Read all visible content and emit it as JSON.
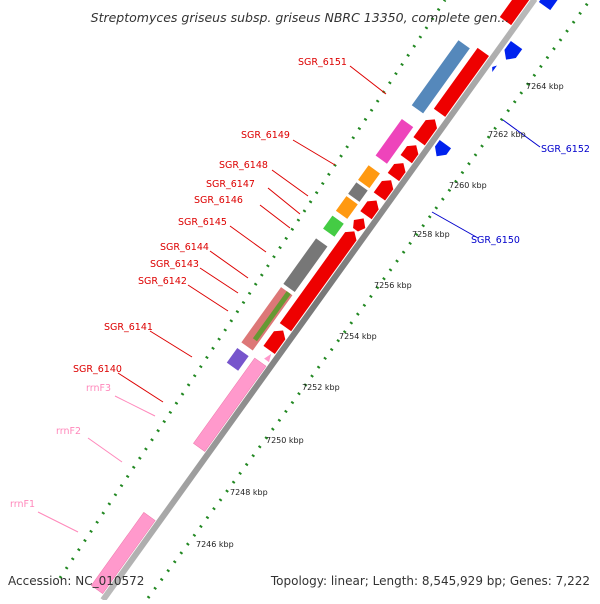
{
  "header": {
    "title": "Streptomyces griseus subsp. griseus NBRC 13350, complete gen..."
  },
  "footer": {
    "accession": "Accession: NC_010572",
    "topology": "Topology: linear; Length: 8,545,929 bp; Genes: 7,222"
  },
  "colors": {
    "cds": "#ff0000",
    "cds_minus": "#0000ff",
    "rrna": "#ff99cc",
    "backbone": "#999999",
    "dots": "#228822"
  },
  "scale_labels": [
    "7246 kbp",
    "7248 kbp",
    "7250 kbp",
    "7252 kbp",
    "7254 kbp",
    "7256 kbp",
    "7258 kbp",
    "7260 kbp",
    "7262 kbp",
    "7264 kbp"
  ],
  "feature_labels": [
    {
      "id": "lbl-rrnF1",
      "text": "rrnF1",
      "color": "#ff88bb"
    },
    {
      "id": "lbl-rrnF2",
      "text": "rrnF2",
      "color": "#ff88bb"
    },
    {
      "id": "lbl-rrnF3",
      "text": "rrnF3",
      "color": "#ff88bb"
    },
    {
      "id": "lbl-sgr6140",
      "text": "SGR_6140",
      "color": "#dd0000"
    },
    {
      "id": "lbl-sgr6141",
      "text": "SGR_6141",
      "color": "#dd0000"
    },
    {
      "id": "lbl-sgr6142",
      "text": "SGR_6142",
      "color": "#dd0000"
    },
    {
      "id": "lbl-sgr6143",
      "text": "SGR_6143",
      "color": "#dd0000"
    },
    {
      "id": "lbl-sgr6144",
      "text": "SGR_6144",
      "color": "#dd0000"
    },
    {
      "id": "lbl-sgr6145",
      "text": "SGR_6145",
      "color": "#dd0000"
    },
    {
      "id": "lbl-sgr6146",
      "text": "SGR_6146",
      "color": "#dd0000"
    },
    {
      "id": "lbl-sgr6147",
      "text": "SGR_6147",
      "color": "#dd0000"
    },
    {
      "id": "lbl-sgr6148",
      "text": "SGR_6148",
      "color": "#dd0000"
    },
    {
      "id": "lbl-sgr6149",
      "text": "SGR_6149",
      "color": "#dd0000"
    },
    {
      "id": "lbl-sgr6151",
      "text": "SGR_6151",
      "color": "#dd0000"
    },
    {
      "id": "lbl-sgr6150",
      "text": "SGR_6150",
      "color": "#0000cc"
    },
    {
      "id": "lbl-sgr6152",
      "text": "SGR_6152",
      "color": "#0000cc"
    }
  ]
}
